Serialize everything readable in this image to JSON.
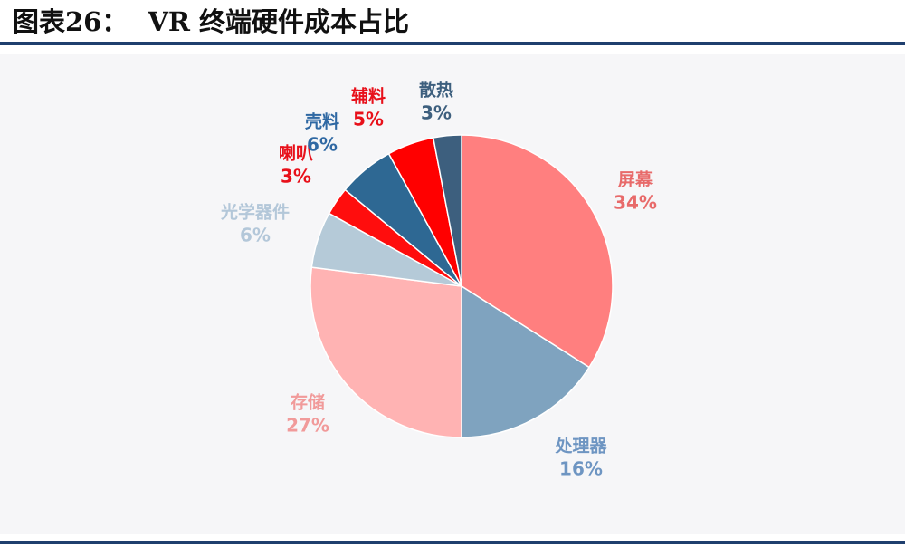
{
  "header": {
    "figure_no": "图表26：",
    "title": "VR 终端硬件成本占比"
  },
  "chart_data": {
    "type": "pie",
    "title": "VR 终端硬件成本占比",
    "start_angle_deg": 0,
    "direction": "clockwise",
    "slices": [
      {
        "name": "屏幕",
        "value": 34,
        "label": "34%",
        "color": "#ff7f7f",
        "label_color": "#e86a6a"
      },
      {
        "name": "处理器",
        "value": 16,
        "label": "16%",
        "color": "#7fa3bf",
        "label_color": "#6e95c2"
      },
      {
        "name": "存储",
        "value": 27,
        "label": "27%",
        "color": "#ffb3b3",
        "label_color": "#f19a9a"
      },
      {
        "name": "光学器件",
        "value": 6,
        "label": "6%",
        "color": "#b5cad8",
        "label_color": "#b3c7d9"
      },
      {
        "name": "喇叭",
        "value": 3,
        "label": "3%",
        "color": "#ff0d0d",
        "label_color": "#e8101a"
      },
      {
        "name": "壳料",
        "value": 6,
        "label": "6%",
        "color": "#2e6893",
        "label_color": "#2f68a3"
      },
      {
        "name": "辅料",
        "value": 5,
        "label": "5%",
        "color": "#ff0000",
        "label_color": "#e8101a"
      },
      {
        "name": "散热",
        "value": 3,
        "label": "3%",
        "color": "#3d5f7e",
        "label_color": "#3d5f7e"
      }
    ]
  }
}
